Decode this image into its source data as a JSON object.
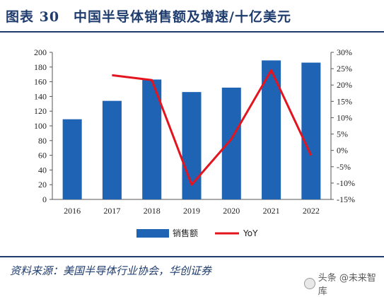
{
  "header": {
    "title": "图表 30　中国半导体销售额及增速/十亿美元"
  },
  "footer": {
    "source": "资料来源：美国半导体行业协会，华创证券",
    "watermark": "头条 @未来智库"
  },
  "colors": {
    "bar": "#1f64b4",
    "line": "#e3141e",
    "title": "#1f3c6e"
  },
  "chart_data": {
    "type": "bar",
    "categories": [
      "2016",
      "2017",
      "2018",
      "2019",
      "2020",
      "2021",
      "2022"
    ],
    "series": [
      {
        "name": "销售额",
        "type": "bar",
        "axis": "left",
        "values": [
          109,
          134,
          163,
          146,
          152,
          189,
          186
        ]
      },
      {
        "name": "YoY",
        "type": "line",
        "axis": "right",
        "values": [
          null,
          23,
          21.5,
          -10.5,
          3.5,
          24.5,
          -1.5
        ]
      }
    ],
    "ylim": [
      0,
      200
    ],
    "yticks": [
      "0",
      "20",
      "40",
      "60",
      "80",
      "100",
      "120",
      "140",
      "160",
      "180",
      "200"
    ],
    "y2lim": [
      -15,
      30
    ],
    "y2ticks": [
      "-15%",
      "-10%",
      "-5%",
      "0%",
      "5%",
      "10%",
      "15%",
      "20%",
      "25%",
      "30%"
    ],
    "grid": false,
    "legend_position": "bottom"
  }
}
